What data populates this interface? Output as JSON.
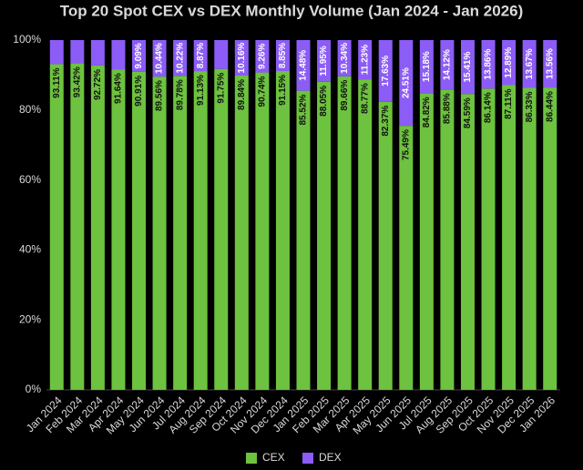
{
  "chart_data": {
    "type": "stacked_bar",
    "title": "Top 20 Spot CEX vs DEX Monthly Volume (Jan 2024 - Jan 2026)",
    "categories": [
      "Jan 2024",
      "Feb 2024",
      "Mar 2024",
      "Apr 2024",
      "May 2024",
      "Jun 2024",
      "Jul 2024",
      "Aug 2024",
      "Sep 2024",
      "Oct 2024",
      "Nov 2024",
      "Dec 2024",
      "Jan 2025",
      "Feb 2025",
      "Mar 2025",
      "Apr 2025",
      "May 2025",
      "Jun 2025",
      "Jul 2025",
      "Aug 2025",
      "Sep 2025",
      "Oct 2025",
      "Nov 2025",
      "Dec 2025",
      "Jan 2026"
    ],
    "series": [
      {
        "name": "CEX",
        "color": "#6dc23f",
        "label_color": "#111111",
        "values": [
          93.11,
          93.42,
          92.72,
          91.64,
          90.91,
          89.56,
          89.78,
          91.13,
          91.75,
          89.84,
          90.74,
          91.15,
          85.52,
          88.05,
          89.66,
          88.77,
          82.37,
          75.49,
          84.82,
          85.88,
          84.59,
          86.14,
          87.11,
          86.33,
          86.44
        ],
        "value_labels": [
          "93.11%",
          "93.42%",
          "92.72%",
          "91.64%",
          "90.91%",
          "89.56%",
          "89.78%",
          "91.13%",
          "91.75%",
          "89.84%",
          "90.74%",
          "91.15%",
          "85.52%",
          "88.05%",
          "89.66%",
          "88.77%",
          "82.37%",
          "75.49%",
          "84.82%",
          "85.88%",
          "84.59%",
          "86.14%",
          "87.11%",
          "86.33%",
          "86.44%"
        ]
      },
      {
        "name": "DEX",
        "color": "#8b5cf6",
        "label_color": "#ffffff",
        "values": [
          6.89,
          6.58,
          7.28,
          8.36,
          9.09,
          10.44,
          10.22,
          8.87,
          8.25,
          10.16,
          9.26,
          8.85,
          14.48,
          11.95,
          10.34,
          11.23,
          17.63,
          24.51,
          15.18,
          14.12,
          15.41,
          13.86,
          12.89,
          13.67,
          13.56
        ],
        "value_labels": [
          null,
          null,
          null,
          null,
          "9.09%",
          "10.44%",
          "10.22%",
          "8.87%",
          null,
          "10.16%",
          "9.26%",
          "8.85%",
          "14.48%",
          "11.95%",
          "10.34%",
          "11.23%",
          "17.63%",
          "24.51%",
          "15.18%",
          "14.12%",
          "15.41%",
          "13.86%",
          "12.89%",
          "13.67%",
          "13.56%"
        ]
      }
    ],
    "ylim": [
      0,
      100
    ],
    "yticks": [
      {
        "value": 0,
        "label": "0%"
      },
      {
        "value": 20,
        "label": "20%"
      },
      {
        "value": 40,
        "label": "40%"
      },
      {
        "value": 60,
        "label": "60%"
      },
      {
        "value": 80,
        "label": "80%"
      },
      {
        "value": 100,
        "label": "100%"
      }
    ],
    "grid": false,
    "legend": "bottom"
  }
}
